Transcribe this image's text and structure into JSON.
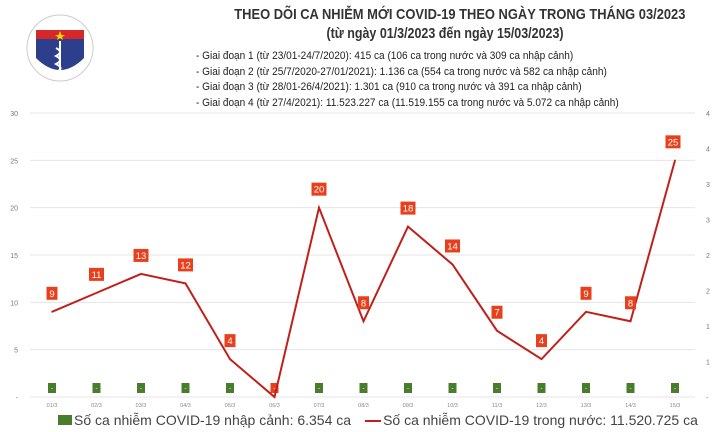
{
  "logo": {
    "text_top": "BỘ Y TẾ",
    "text_bottom": "MINISTRY OF HEALTH"
  },
  "title": "THEO DÕI CA NHIỄM MỚI COVID-19 THEO NGÀY TRONG THÁNG 03/2023",
  "subtitle": "(từ ngày 01/3/2023 đến ngày 15/03/2023)",
  "notes": [
    "- Giai đoạn 1 (từ 23/01-24/7/2020): 415 ca (106 ca trong nước và 309 ca nhập cảnh)",
    "- Giai đoạn 2 (từ 25/7/2020-27/01/2021): 1.136 ca (554 ca trong nước và 582 ca nhập cảnh)",
    "- Giai đoạn 3 (từ 28/01-26/4/2021): 1.301 ca (910 ca trong nước và 391 ca nhập cảnh)",
    "- Giai đoạn 4 (từ 27/4/2021): 11.523.227 ca (11.519.155 ca trong nước và 5.072 ca nhập cảnh)"
  ],
  "chart_data": {
    "type": "bar+line",
    "categories": [
      "01/3",
      "02/3",
      "03/3",
      "04/3",
      "05/3",
      "06/3",
      "07/3",
      "08/3",
      "09/3",
      "10/3",
      "11/3",
      "12/3",
      "13/3",
      "14/3",
      "15/3"
    ],
    "series": [
      {
        "name": "Số ca nhiễm COVID-19 nhập cảnh: 6.354 ca",
        "type": "bar",
        "axis": "right",
        "values": [
          0,
          0,
          0,
          0,
          0,
          0,
          0,
          0,
          0,
          0,
          0,
          0,
          0,
          0,
          0
        ],
        "labels": [
          "-",
          "-",
          "-",
          "-",
          "-",
          "-",
          "-",
          "-",
          "-",
          "-",
          "-",
          "-",
          "-",
          "-",
          "-"
        ],
        "color": "#4a7c2e"
      },
      {
        "name": "Số ca nhiễm COVID-19 trong nước: 11.520.725 ca",
        "type": "line",
        "axis": "left",
        "values": [
          9,
          11,
          13,
          12,
          4,
          0,
          20,
          8,
          18,
          14,
          7,
          4,
          9,
          8,
          25
        ],
        "labels": [
          "9",
          "11",
          "13",
          "12",
          "4",
          "-",
          "20",
          "8",
          "18",
          "14",
          "7",
          "4",
          "9",
          "8",
          "25"
        ],
        "color": "#c0201a"
      }
    ],
    "y_left": {
      "ylim": [
        0,
        30
      ],
      "ticks": [
        "-",
        "5",
        "10",
        "15",
        "20",
        "25",
        "30"
      ]
    },
    "y_right": {
      "ticks": [
        "-",
        "1",
        "1",
        "2",
        "2",
        "3",
        "3",
        "4",
        "4"
      ]
    },
    "grid": true,
    "legend": "bottom"
  }
}
